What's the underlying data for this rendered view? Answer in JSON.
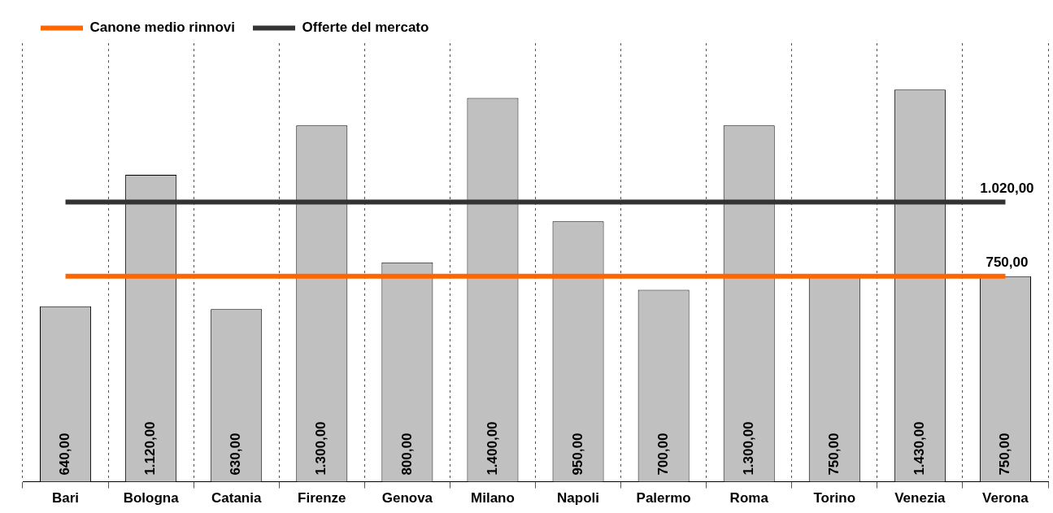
{
  "chart_data": {
    "type": "bar",
    "categories": [
      "Bari",
      "Bologna",
      "Catania",
      "Firenze",
      "Genova",
      "Milano",
      "Napoli",
      "Palermo",
      "Roma",
      "Torino",
      "Venezia",
      "Verona"
    ],
    "series": [
      {
        "color": "#c0c0c0",
        "values": [
          640,
          1120,
          630,
          1300,
          800,
          1400,
          950,
          700,
          1300,
          750,
          1430,
          750
        ],
        "value_labels": [
          "640,00",
          "1.120,00",
          "630,00",
          "1.300,00",
          "800,00",
          "1.400,00",
          "950,00",
          "700,00",
          "1.300,00",
          "750,00",
          "1.430,00",
          "750,00"
        ]
      },
      {
        "type": "line",
        "name": "Canone medio rinnovi",
        "color": "#ff6600",
        "values": [
          750,
          750,
          750,
          750,
          750,
          750,
          750,
          750,
          750,
          750,
          750,
          750
        ],
        "value_labels": [
          null,
          null,
          null,
          null,
          null,
          null,
          null,
          null,
          null,
          null,
          null,
          "750,00"
        ]
      },
      {
        "type": "line",
        "name": "Offerte del mercato",
        "color": "#333333",
        "values": [
          1020,
          1020,
          1020,
          1020,
          1020,
          1020,
          1020,
          1020,
          1020,
          1020,
          1020,
          1020
        ],
        "value_labels": [
          null,
          null,
          null,
          null,
          null,
          null,
          null,
          null,
          null,
          null,
          null,
          "1.020,00"
        ]
      }
    ],
    "legend": "top left",
    "grid": "x"
  }
}
